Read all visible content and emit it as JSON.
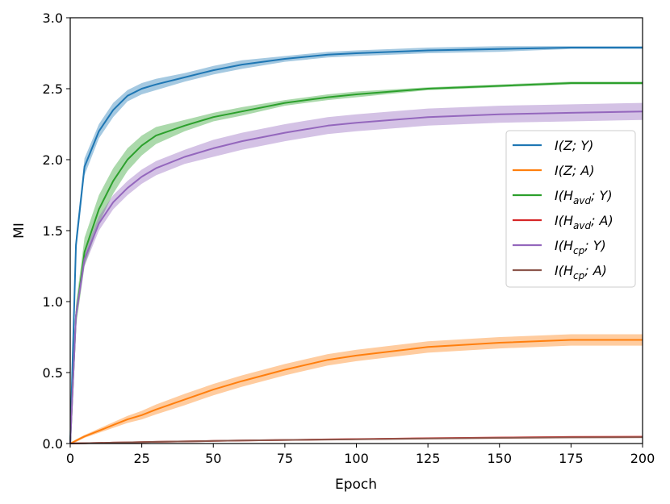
{
  "chart_data": {
    "type": "line",
    "title": "",
    "xlabel": "Epoch",
    "ylabel": "MI",
    "xlim": [
      0,
      200
    ],
    "ylim": [
      0,
      3.0
    ],
    "xticks": [
      0,
      25,
      50,
      75,
      100,
      125,
      150,
      175,
      200
    ],
    "xtick_labels": [
      "0",
      "25",
      "50",
      "75",
      "100",
      "125",
      "150",
      "175",
      "200"
    ],
    "yticks": [
      0,
      0.5,
      1.0,
      1.5,
      2.0,
      2.5,
      3.0
    ],
    "ytick_labels": [
      "0.0",
      "0.5",
      "1.0",
      "1.5",
      "2.0",
      "2.5",
      "3.0"
    ],
    "grid": false,
    "legend_position": "center-right",
    "x": [
      0,
      2,
      5,
      10,
      15,
      20,
      25,
      30,
      40,
      50,
      60,
      75,
      90,
      100,
      125,
      150,
      175,
      200
    ],
    "series": [
      {
        "name": "I(Z;Y)",
        "legend": {
          "pre": "I(Z; Y)",
          "sub": "",
          "post": ""
        },
        "color": "#1f77b4",
        "values": [
          0.0,
          1.4,
          1.95,
          2.2,
          2.35,
          2.45,
          2.5,
          2.53,
          2.58,
          2.63,
          2.67,
          2.71,
          2.74,
          2.75,
          2.77,
          2.78,
          2.79,
          2.79
        ],
        "band": [
          0.03,
          0.06,
          0.06,
          0.05,
          0.05,
          0.04,
          0.04,
          0.04,
          0.03,
          0.03,
          0.03,
          0.02,
          0.02,
          0.02,
          0.02,
          0.02,
          0.01,
          0.01
        ]
      },
      {
        "name": "I(Z;A)",
        "legend": {
          "pre": "I(Z; A)",
          "sub": "",
          "post": ""
        },
        "color": "#ff7f0e",
        "values": [
          0.0,
          0.02,
          0.05,
          0.09,
          0.13,
          0.17,
          0.2,
          0.24,
          0.31,
          0.38,
          0.44,
          0.52,
          0.59,
          0.62,
          0.68,
          0.71,
          0.73,
          0.73
        ],
        "band": [
          0.0,
          0.01,
          0.01,
          0.015,
          0.02,
          0.025,
          0.03,
          0.035,
          0.04,
          0.04,
          0.04,
          0.04,
          0.04,
          0.04,
          0.04,
          0.04,
          0.04,
          0.04
        ]
      },
      {
        "name": "I(H_avd;Y)",
        "legend": {
          "pre": "I(H",
          "sub": "avd",
          "post": "; Y)"
        },
        "color": "#2ca02c",
        "values": [
          0.0,
          0.9,
          1.35,
          1.65,
          1.85,
          2.0,
          2.1,
          2.17,
          2.24,
          2.3,
          2.34,
          2.4,
          2.44,
          2.46,
          2.5,
          2.52,
          2.54,
          2.54
        ],
        "band": [
          0.03,
          0.08,
          0.1,
          0.1,
          0.09,
          0.08,
          0.07,
          0.06,
          0.04,
          0.03,
          0.03,
          0.02,
          0.02,
          0.02,
          0.01,
          0.01,
          0.01,
          0.01
        ]
      },
      {
        "name": "I(H_avd;A)",
        "legend": {
          "pre": "I(H",
          "sub": "avd",
          "post": "; A)"
        },
        "color": "#d62728",
        "values": [
          0.0,
          0.001,
          0.002,
          0.004,
          0.006,
          0.008,
          0.01,
          0.012,
          0.015,
          0.018,
          0.021,
          0.025,
          0.029,
          0.031,
          0.037,
          0.042,
          0.046,
          0.048
        ],
        "band": [
          0.0,
          0.001,
          0.001,
          0.002,
          0.002,
          0.003,
          0.003,
          0.003,
          0.004,
          0.004,
          0.004,
          0.005,
          0.005,
          0.005,
          0.006,
          0.006,
          0.006,
          0.006
        ]
      },
      {
        "name": "I(H_cp;Y)",
        "legend": {
          "pre": "I(H",
          "sub": "cp",
          "post": "; Y)"
        },
        "color": "#9467bd",
        "values": [
          0.0,
          0.9,
          1.3,
          1.55,
          1.7,
          1.8,
          1.88,
          1.94,
          2.02,
          2.08,
          2.13,
          2.19,
          2.24,
          2.26,
          2.3,
          2.32,
          2.33,
          2.34
        ],
        "band": [
          0.03,
          0.05,
          0.05,
          0.05,
          0.05,
          0.05,
          0.05,
          0.05,
          0.05,
          0.06,
          0.06,
          0.06,
          0.06,
          0.06,
          0.06,
          0.06,
          0.06,
          0.06
        ]
      },
      {
        "name": "I(H_cp;A)",
        "legend": {
          "pre": "I(H",
          "sub": "cp",
          "post": "; A)"
        },
        "color": "#8c564b",
        "values": [
          0.0,
          0.001,
          0.002,
          0.004,
          0.006,
          0.008,
          0.01,
          0.012,
          0.015,
          0.018,
          0.021,
          0.025,
          0.028,
          0.03,
          0.035,
          0.04,
          0.043,
          0.045
        ],
        "band": [
          0.0,
          0.001,
          0.001,
          0.002,
          0.002,
          0.003,
          0.003,
          0.003,
          0.004,
          0.004,
          0.004,
          0.005,
          0.005,
          0.005,
          0.006,
          0.006,
          0.006,
          0.006
        ]
      }
    ]
  }
}
